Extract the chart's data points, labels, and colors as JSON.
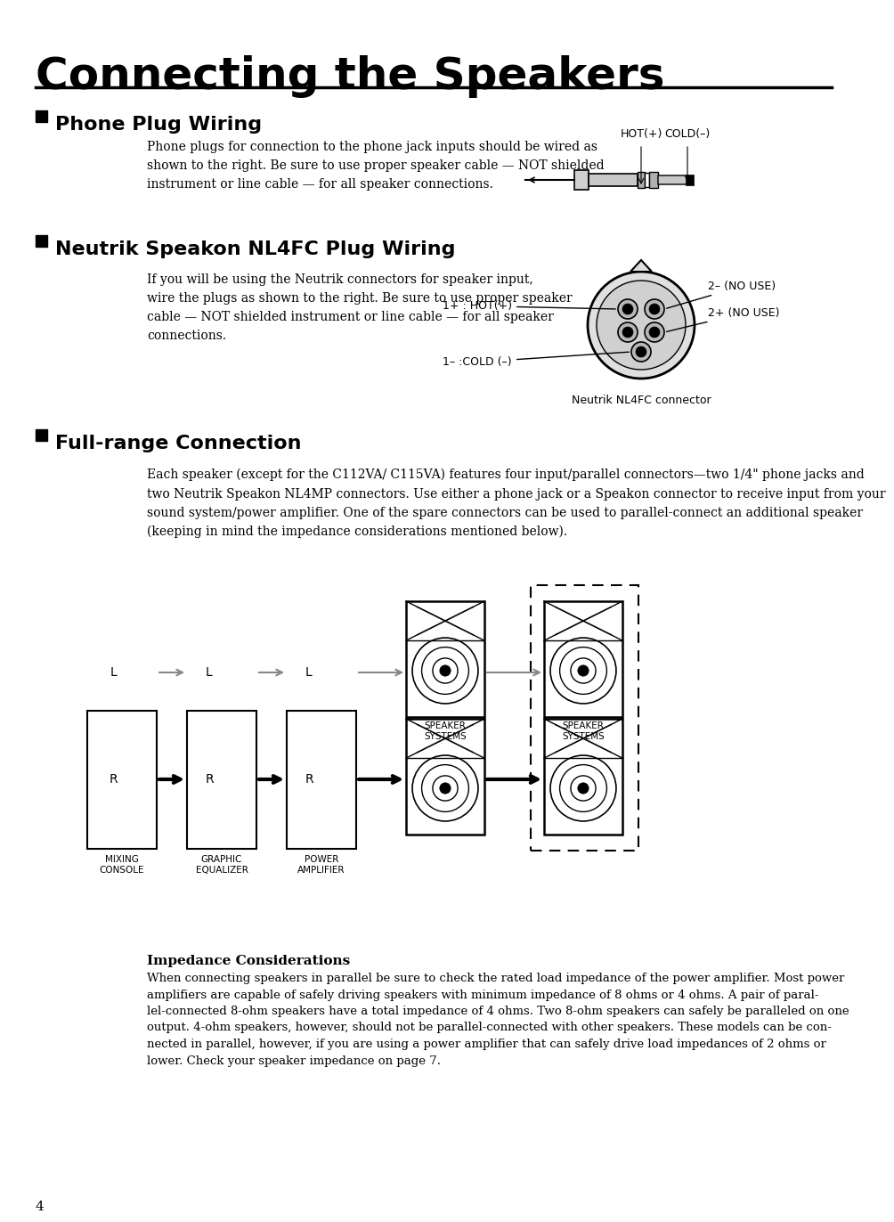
{
  "title": "Connecting the Speakers",
  "section1_title": "Phone Plug Wiring",
  "section1_body": "Phone plugs for connection to the phone jack inputs should be wired as\nshown to the right. Be sure to use proper speaker cable — NOT shielded\ninstrument or line cable — for all speaker connections.",
  "section2_title": "Neutrik Speakon NL4FC Plug Wiring",
  "section2_body": "If you will be using the Neutrik connectors for speaker input,\nwire the plugs as shown to the right. Be sure to use proper speaker\ncable — NOT shielded instrument or line cable — for all speaker\nconnections.",
  "section2_caption": "Neutrik NL4FC connector",
  "section3_title": "Full-range Connection",
  "section3_body": "Each speaker (except for the C112VA/ C115VA) features four input/parallel connectors—two 1/4\" phone jacks and\ntwo Neutrik Speakon NL4MP connectors. Use either a phone jack or a Speakon connector to receive input from your\nsound system/power amplifier. One of the spare connectors can be used to parallel-connect an additional speaker\n(keeping in mind the impedance considerations mentioned below).",
  "impedance_title": "Impedance Considerations",
  "impedance_body": "When connecting speakers in parallel be sure to check the rated load impedance of the power amplifier. Most power\namplifiers are capable of safely driving speakers with minimum impedance of 8 ohms or 4 ohms. A pair of paral-\nlel-connected 8-ohm speakers have a total impedance of 4 ohms. Two 8-ohm speakers can safely be paralleled on one\noutput. 4-ohm speakers, however, should not be parallel-connected with other speakers. These models can be con-\nnected in parallel, however, if you are using a power amplifier that can safely drive load impedances of 2 ohms or\nlower. Check your speaker impedance on page 7.",
  "page_number": "4",
  "bg_color": "#ffffff",
  "text_color": "#000000",
  "label_hot": "HOT(+)",
  "label_cold": "COLD(–)",
  "label_2minus": "2– (NO USE)",
  "label_2plus": "2+ (NO USE)",
  "label_1plus": "1+ : HOT(+)",
  "label_1minus": "1– :COLD (–)",
  "mixing_console": "MIXING\nCONSOLE",
  "graphic_eq": "GRAPHIC\nEQUALIZER",
  "power_amp": "POWER\nAMPLIFIER",
  "speaker_systems": "SPEAKER\nSYSTEMS"
}
